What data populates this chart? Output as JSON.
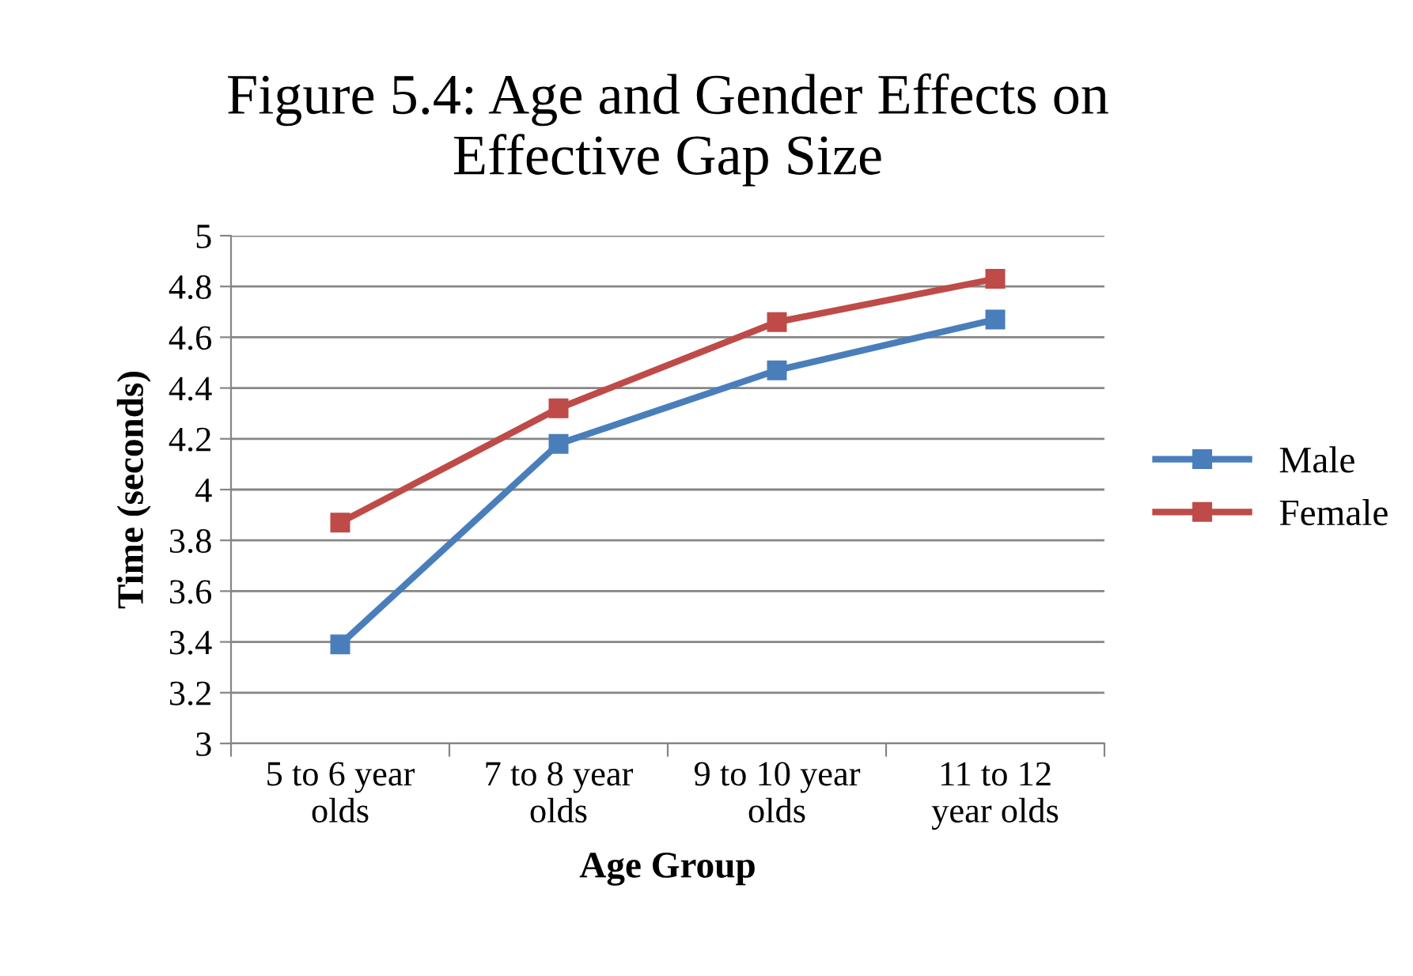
{
  "chart_data": {
    "type": "line",
    "title": "Figure 5.4: Age and Gender Effects on\nEffective Gap Size",
    "xlabel": "Age Group",
    "ylabel": "Time (seconds)",
    "categories": [
      "5 to 6 year\nolds",
      "7 to 8 year\nolds",
      "9 to 10 year\nolds",
      "11 to 12\nyear olds"
    ],
    "series": [
      {
        "name": "Male",
        "color": "#4a7ebb",
        "values": [
          3.39,
          4.18,
          4.47,
          4.67
        ]
      },
      {
        "name": "Female",
        "color": "#be4b48",
        "values": [
          3.87,
          4.32,
          4.66,
          4.83
        ]
      }
    ],
    "ylim": [
      3,
      5
    ],
    "yticks": [
      3,
      3.2,
      3.4,
      3.6,
      3.8,
      4,
      4.2,
      4.4,
      4.6,
      4.8,
      5
    ],
    "grid": "y",
    "legend": "right",
    "marker": "square",
    "line_style": "solid"
  }
}
